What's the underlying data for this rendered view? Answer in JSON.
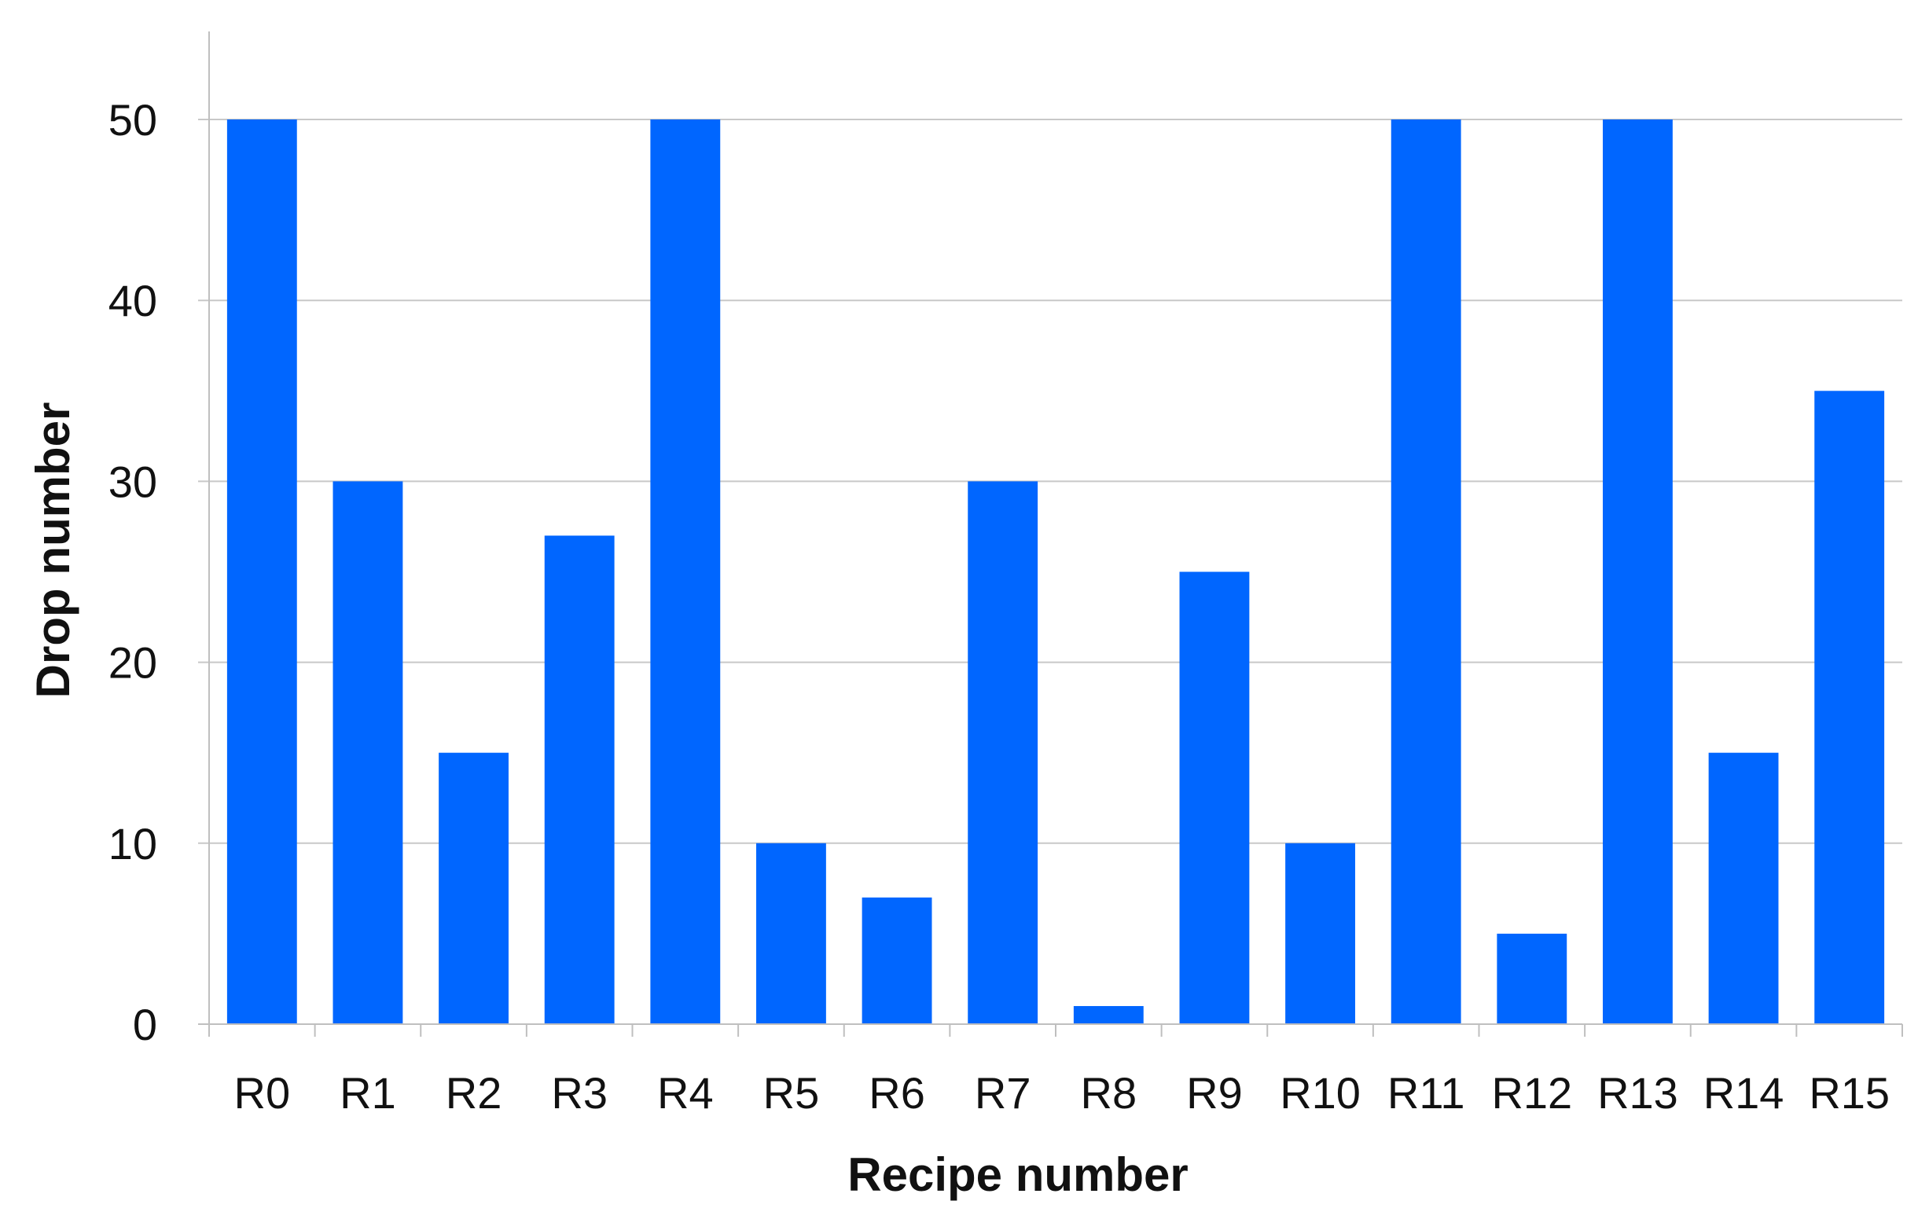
{
  "chart_data": {
    "type": "bar",
    "title": "",
    "xlabel": "Recipe number",
    "ylabel": "Drop number",
    "categories": [
      "R0",
      "R1",
      "R2",
      "R3",
      "R4",
      "R5",
      "R6",
      "R7",
      "R8",
      "R9",
      "R10",
      "R11",
      "R12",
      "R13",
      "R14",
      "R15"
    ],
    "values": [
      50,
      30,
      15,
      27,
      50,
      10,
      7,
      30,
      1,
      25,
      10,
      50,
      5,
      50,
      15,
      35
    ],
    "ylim": [
      0,
      50
    ],
    "yticks": [
      0,
      10,
      20,
      30,
      40,
      50
    ],
    "grid": true,
    "legend": "none",
    "colors": {
      "bar": "#0066ff",
      "grid": "#c8c8c8",
      "axis": "#bfbfbf",
      "text": "#111111"
    }
  }
}
